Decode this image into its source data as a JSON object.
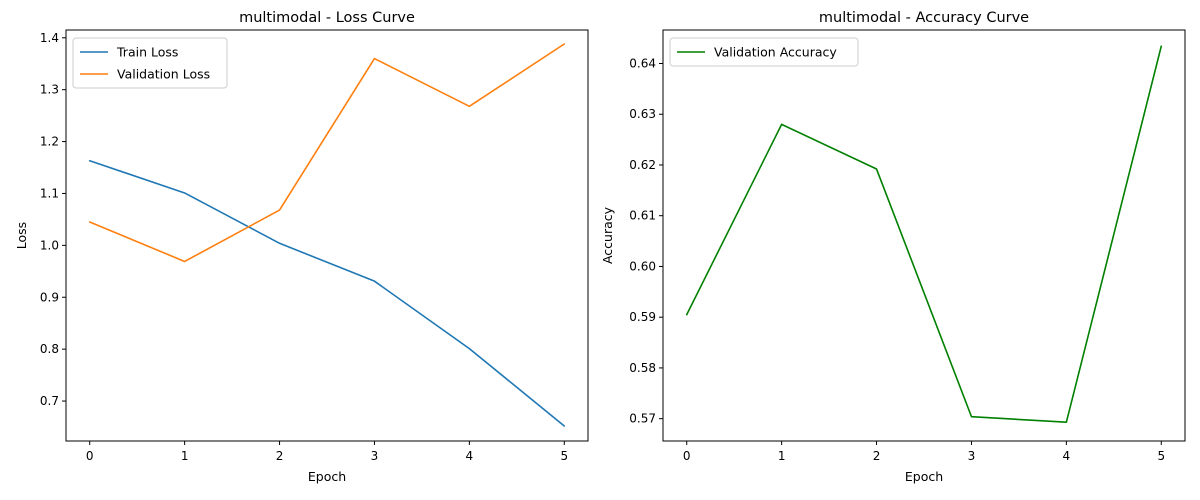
{
  "chart_data": [
    {
      "type": "line",
      "title": "multimodal - Loss Curve",
      "xlabel": "Epoch",
      "ylabel": "Loss",
      "x": [
        0,
        1,
        2,
        3,
        4,
        5
      ],
      "xlim": [
        -0.25,
        5.25
      ],
      "ylim": [
        0.623,
        1.415
      ],
      "xticks": [
        "0",
        "1",
        "2",
        "3",
        "4",
        "5"
      ],
      "yticks": [
        "0.7",
        "0.8",
        "0.9",
        "1.0",
        "1.1",
        "1.2",
        "1.3",
        "1.4"
      ],
      "grid": false,
      "legend_position": "upper left",
      "series": [
        {
          "name": "Train Loss",
          "color": "#1f77b4",
          "values": [
            1.163,
            1.101,
            1.004,
            0.931,
            0.801,
            0.652
          ]
        },
        {
          "name": "Validation Loss",
          "color": "#ff7f0e",
          "values": [
            1.045,
            0.969,
            1.068,
            1.36,
            1.268,
            1.388
          ]
        }
      ]
    },
    {
      "type": "line",
      "title": "multimodal - Accuracy Curve",
      "xlabel": "Epoch",
      "ylabel": "Accuracy",
      "x": [
        0,
        1,
        2,
        3,
        4,
        5
      ],
      "xlim": [
        -0.25,
        5.25
      ],
      "ylim": [
        0.5656,
        0.6466
      ],
      "xticks": [
        "0",
        "1",
        "2",
        "3",
        "4",
        "5"
      ],
      "yticks": [
        "0.57",
        "0.58",
        "0.59",
        "0.60",
        "0.61",
        "0.62",
        "0.63",
        "0.64"
      ],
      "grid": false,
      "legend_position": "upper left",
      "series": [
        {
          "name": "Validation Accuracy",
          "color": "#008000",
          "values": [
            0.5905,
            0.628,
            0.6192,
            0.5704,
            0.5693,
            0.6434
          ]
        }
      ]
    }
  ]
}
